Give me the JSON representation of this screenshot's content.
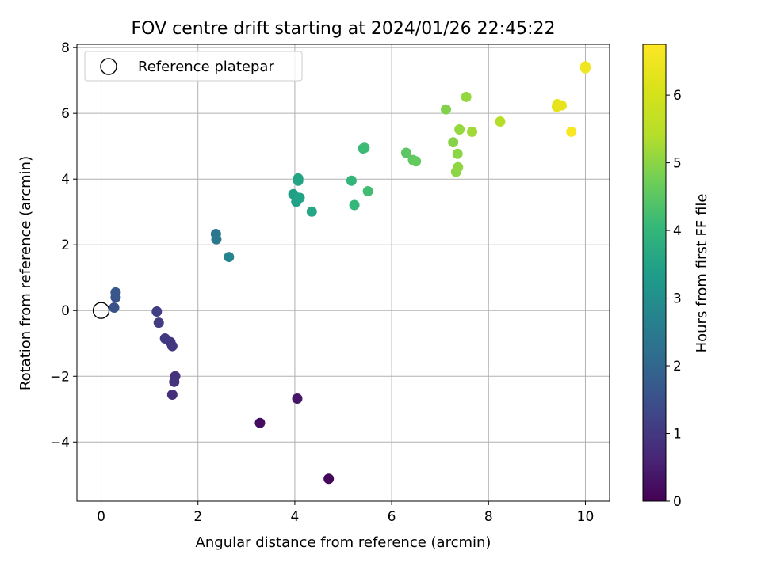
{
  "chart_data": {
    "type": "scatter",
    "title": "FOV centre drift starting at 2024/01/26 22:45:22",
    "xlabel": "Angular distance from reference (arcmin)",
    "ylabel": "Rotation from reference (arcmin)",
    "xlim": [
      -0.5,
      10.5
    ],
    "ylim": [
      -5.8,
      8.1
    ],
    "xticks": [
      0,
      2,
      4,
      6,
      8,
      10
    ],
    "xtick_labels": [
      "0",
      "2",
      "4",
      "6",
      "8",
      "10"
    ],
    "yticks": [
      -4,
      -2,
      0,
      2,
      4,
      6,
      8
    ],
    "ytick_labels": [
      "−4",
      "−2",
      "0",
      "2",
      "4",
      "6",
      "8"
    ],
    "grid": true,
    "legend": {
      "position": "top-left",
      "entries": [
        "Reference platepar"
      ]
    },
    "reference_point": {
      "x": 0,
      "y": 0,
      "marker": "open-circle",
      "color": "#000000"
    },
    "colorbar": {
      "label": "Hours from first FF file",
      "colormap": "viridis",
      "range": [
        0,
        6.75
      ],
      "ticks": [
        0,
        1,
        2,
        3,
        4,
        5,
        6
      ],
      "tick_labels": [
        "0",
        "1",
        "2",
        "3",
        "4",
        "5",
        "6"
      ]
    },
    "points": [
      {
        "x": 4.7,
        "y": -5.12,
        "c": 0.1
      },
      {
        "x": 3.28,
        "y": -3.42,
        "c": 0.2
      },
      {
        "x": 4.05,
        "y": -2.68,
        "c": 0.35
      },
      {
        "x": 1.47,
        "y": -2.56,
        "c": 0.8
      },
      {
        "x": 1.53,
        "y": -2.0,
        "c": 0.85
      },
      {
        "x": 1.51,
        "y": -2.17,
        "c": 0.9
      },
      {
        "x": 1.43,
        "y": -0.96,
        "c": 0.95
      },
      {
        "x": 1.47,
        "y": -1.08,
        "c": 1.0
      },
      {
        "x": 1.32,
        "y": -0.85,
        "c": 1.05
      },
      {
        "x": 1.19,
        "y": -0.37,
        "c": 1.1
      },
      {
        "x": 1.15,
        "y": -0.03,
        "c": 1.15
      },
      {
        "x": 0.27,
        "y": 0.09,
        "c": 1.55
      },
      {
        "x": 0.3,
        "y": 0.4,
        "c": 1.6
      },
      {
        "x": 0.3,
        "y": 0.55,
        "c": 1.65
      },
      {
        "x": 2.37,
        "y": 2.33,
        "c": 2.4
      },
      {
        "x": 2.38,
        "y": 2.17,
        "c": 2.45
      },
      {
        "x": 2.64,
        "y": 1.63,
        "c": 2.75
      },
      {
        "x": 3.97,
        "y": 3.54,
        "c": 3.4
      },
      {
        "x": 4.03,
        "y": 3.31,
        "c": 3.45
      },
      {
        "x": 4.1,
        "y": 3.43,
        "c": 3.5
      },
      {
        "x": 4.07,
        "y": 3.95,
        "c": 3.55
      },
      {
        "x": 4.07,
        "y": 4.02,
        "c": 3.55
      },
      {
        "x": 4.35,
        "y": 3.01,
        "c": 3.6
      },
      {
        "x": 5.17,
        "y": 3.95,
        "c": 4.0
      },
      {
        "x": 5.23,
        "y": 3.21,
        "c": 4.05
      },
      {
        "x": 5.41,
        "y": 4.93,
        "c": 4.1
      },
      {
        "x": 5.44,
        "y": 4.95,
        "c": 4.15
      },
      {
        "x": 5.51,
        "y": 3.63,
        "c": 4.2
      },
      {
        "x": 6.3,
        "y": 4.8,
        "c": 4.5
      },
      {
        "x": 6.44,
        "y": 4.58,
        "c": 4.55
      },
      {
        "x": 6.5,
        "y": 4.54,
        "c": 4.6
      },
      {
        "x": 7.12,
        "y": 6.12,
        "c": 4.9
      },
      {
        "x": 7.27,
        "y": 5.12,
        "c": 4.95
      },
      {
        "x": 7.33,
        "y": 4.22,
        "c": 5.0
      },
      {
        "x": 7.36,
        "y": 4.77,
        "c": 5.0
      },
      {
        "x": 7.37,
        "y": 4.36,
        "c": 5.05
      },
      {
        "x": 7.4,
        "y": 5.51,
        "c": 5.1
      },
      {
        "x": 7.54,
        "y": 6.5,
        "c": 5.1
      },
      {
        "x": 7.66,
        "y": 5.44,
        "c": 5.2
      },
      {
        "x": 8.24,
        "y": 5.75,
        "c": 5.4
      },
      {
        "x": 9.41,
        "y": 6.2,
        "c": 6.3
      },
      {
        "x": 9.42,
        "y": 6.28,
        "c": 6.3
      },
      {
        "x": 9.47,
        "y": 6.25,
        "c": 6.35
      },
      {
        "x": 9.51,
        "y": 6.24,
        "c": 6.35
      },
      {
        "x": 9.71,
        "y": 5.44,
        "c": 6.7
      },
      {
        "x": 10.0,
        "y": 7.43,
        "c": 6.5
      },
      {
        "x": 10.0,
        "y": 7.37,
        "c": 6.5
      }
    ]
  }
}
